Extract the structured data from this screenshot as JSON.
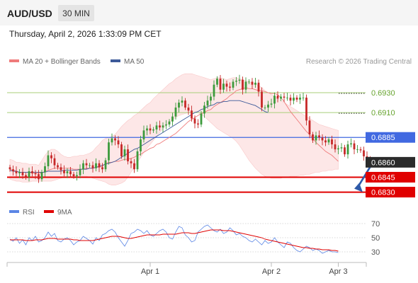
{
  "header": {
    "pair": "AUD/USD",
    "timeframe": "30 MIN",
    "datetime": "Thursday, April 2, 2026 1:33:09 PM CET",
    "credit": "Research © 2026 Trading Central"
  },
  "colors": {
    "candle_up": "#3c9a3c",
    "candle_down": "#c62828",
    "ma20": "#ef7b7b",
    "band_fill": "#fde3e3",
    "ma50": "#3d5a99",
    "resistance": "#a8cf7a",
    "resistance_text": "#66a32e",
    "pivot": "#4169e1",
    "support": "#e00000",
    "current": "#2b2b2b",
    "rsi": "#5b86e5",
    "rsi_ma": "#e00000",
    "arrow": "#2e5aa8"
  },
  "chart_data": [
    {
      "type": "candlestick",
      "legend": [
        "MA 20 + Bollinger Bands",
        "MA 50"
      ],
      "x_tick_labels": [
        "Apr 1",
        "Apr 2",
        "Apr 3"
      ],
      "ylim": [
        0.6824,
        0.6952
      ],
      "levels": [
        {
          "label": "0.6930",
          "value": 0.693,
          "kind": "resistance"
        },
        {
          "label": "0.6910",
          "value": 0.691,
          "kind": "resistance"
        },
        {
          "label": "0.6885",
          "value": 0.6885,
          "kind": "pivot"
        },
        {
          "label": "0.6860",
          "value": 0.686,
          "kind": "current"
        },
        {
          "label": "0.6845",
          "value": 0.6845,
          "kind": "support"
        },
        {
          "label": "0.6830",
          "value": 0.683,
          "kind": "support"
        }
      ],
      "close": [
        0.6853,
        0.6851,
        0.6849,
        0.685,
        0.6847,
        0.6845,
        0.6851,
        0.6849,
        0.6848,
        0.6843,
        0.685,
        0.6856,
        0.6867,
        0.6864,
        0.6857,
        0.6855,
        0.6852,
        0.6849,
        0.6851,
        0.6848,
        0.6846,
        0.6847,
        0.6853,
        0.6859,
        0.6857,
        0.6857,
        0.6854,
        0.6859,
        0.6855,
        0.6853,
        0.6862,
        0.688,
        0.6884,
        0.6882,
        0.6878,
        0.6866,
        0.6873,
        0.6861,
        0.6859,
        0.6853,
        0.6871,
        0.6883,
        0.6892,
        0.6894,
        0.6892,
        0.6893,
        0.6897,
        0.6895,
        0.6897,
        0.6898,
        0.6901,
        0.6906,
        0.6915,
        0.692,
        0.6922,
        0.6915,
        0.6912,
        0.6904,
        0.6899,
        0.6898,
        0.6909,
        0.6917,
        0.6922,
        0.6926,
        0.6938,
        0.6944,
        0.6933,
        0.6939,
        0.6936,
        0.6935,
        0.6941,
        0.6942,
        0.6943,
        0.6933,
        0.6941,
        0.6941,
        0.6938,
        0.694,
        0.6931,
        0.6915,
        0.6915,
        0.6918,
        0.6919,
        0.6927,
        0.6924,
        0.6926,
        0.6925,
        0.6925,
        0.6922,
        0.6925,
        0.6923,
        0.6925,
        0.6925,
        0.6902,
        0.6888,
        0.6882,
        0.6887,
        0.6885,
        0.6882,
        0.688,
        0.6883,
        0.6878,
        0.6873,
        0.6874,
        0.6875,
        0.6868,
        0.6878,
        0.6879,
        0.6873,
        0.6873,
        0.6872,
        0.6866,
        0.6863,
        0.6861
      ],
      "ma20": [
        0.6853,
        0.6852,
        0.6851,
        0.685,
        0.685,
        0.685,
        0.685,
        0.6849,
        0.6849,
        0.6849,
        0.6849,
        0.6851,
        0.6852,
        0.6853,
        0.6854,
        0.6854,
        0.6854,
        0.6854,
        0.6854,
        0.6854,
        0.6853,
        0.6853,
        0.6853,
        0.6853,
        0.6854,
        0.6854,
        0.6854,
        0.6855,
        0.6855,
        0.6856,
        0.6859,
        0.686,
        0.686,
        0.6861,
        0.6861,
        0.6862,
        0.6863,
        0.6863,
        0.6864,
        0.6865,
        0.6867,
        0.6868,
        0.687,
        0.6872,
        0.6874,
        0.6875,
        0.6878,
        0.6879,
        0.6881,
        0.6883,
        0.6885,
        0.6887,
        0.6889,
        0.6892,
        0.6895,
        0.6898,
        0.6901,
        0.6903,
        0.6905,
        0.6907,
        0.6909,
        0.691,
        0.6912,
        0.6913,
        0.6916,
        0.6918,
        0.692,
        0.6922,
        0.6924,
        0.6927,
        0.6929,
        0.6932,
        0.6933,
        0.6934,
        0.6935,
        0.6934,
        0.6934,
        0.6933,
        0.6932,
        0.6932,
        0.6931,
        0.693,
        0.6929,
        0.6929,
        0.6928,
        0.6925,
        0.6921,
        0.6916,
        0.6911,
        0.6907,
        0.6903,
        0.6899,
        0.6895,
        0.6891,
        0.6888,
        0.6884,
        0.688,
        0.6877,
        0.6874,
        0.6871,
        0.6869,
        0.6867,
        0.6864,
        0.6861
      ],
      "bb_upper": [
        0.6863,
        0.6862,
        0.686,
        0.686,
        0.6859,
        0.6859,
        0.6858,
        0.6858,
        0.6858,
        0.6857,
        0.6862,
        0.6867,
        0.6871,
        0.6873,
        0.6873,
        0.6871,
        0.6868,
        0.6866,
        0.6865,
        0.6865,
        0.6866,
        0.6866,
        0.6867,
        0.6867,
        0.6868,
        0.6869,
        0.6871,
        0.6875,
        0.6878,
        0.6882,
        0.6884,
        0.6885,
        0.6886,
        0.6888,
        0.6892,
        0.6896,
        0.6899,
        0.6902,
        0.6904,
        0.6907,
        0.6909,
        0.6912,
        0.6915,
        0.6918,
        0.692,
        0.6924,
        0.6927,
        0.693,
        0.6933,
        0.6936,
        0.6939,
        0.6941,
        0.6944,
        0.6946,
        0.6948,
        0.6949,
        0.6949,
        0.6949,
        0.6948,
        0.6947,
        0.6946,
        0.6945,
        0.6944,
        0.6943,
        0.6944,
        0.6945,
        0.6945,
        0.6944,
        0.6943,
        0.6944,
        0.6945,
        0.6945,
        0.6944,
        0.6943,
        0.6942,
        0.6941,
        0.694,
        0.6939,
        0.6937,
        0.6935,
        0.6932,
        0.693,
        0.6928,
        0.6926,
        0.6924,
        0.6922,
        0.692,
        0.6918,
        0.6916,
        0.6914,
        0.6912,
        0.691,
        0.6908,
        0.6906,
        0.6904,
        0.6902,
        0.69,
        0.6898,
        0.6897,
        0.6896,
        0.6895,
        0.6894,
        0.6893,
        0.6892
      ],
      "bb_lower": [
        0.6843,
        0.6842,
        0.6841,
        0.6841,
        0.684,
        0.684,
        0.684,
        0.6841,
        0.6841,
        0.6841,
        0.6841,
        0.6841,
        0.6841,
        0.6841,
        0.6842,
        0.6843,
        0.6844,
        0.6845,
        0.6846,
        0.6846,
        0.6846,
        0.6846,
        0.6846,
        0.6846,
        0.6846,
        0.6845,
        0.6844,
        0.6843,
        0.6842,
        0.6841,
        0.684,
        0.6838,
        0.6837,
        0.6837,
        0.6838,
        0.6839,
        0.6841,
        0.6845,
        0.685,
        0.6855,
        0.686,
        0.6865,
        0.687,
        0.6874,
        0.6878,
        0.6882,
        0.6886,
        0.689,
        0.6894,
        0.6897,
        0.69,
        0.6903,
        0.6905,
        0.6907,
        0.6908,
        0.6909,
        0.691,
        0.6911,
        0.6911,
        0.691,
        0.6908,
        0.6906,
        0.6903,
        0.69,
        0.6897,
        0.6894,
        0.6892,
        0.689,
        0.6888,
        0.6886,
        0.6884,
        0.6881,
        0.6877,
        0.6872,
        0.6867,
        0.6862,
        0.6858,
        0.6854,
        0.6851,
        0.6848,
        0.6846,
        0.6845,
        0.6844,
        0.6844,
        0.6844,
        0.6844,
        0.6845,
        0.6845,
        0.6846,
        0.6846,
        0.6846,
        0.6847,
        0.6847,
        0.6848,
        0.6848,
        0.6849,
        0.685,
        0.685,
        0.6851,
        0.6851,
        0.6852,
        0.6852,
        0.6853,
        0.6853
      ],
      "ma50": [
        0.6852,
        0.6851,
        0.6851,
        0.685,
        0.685,
        0.685,
        0.685,
        0.685,
        0.685,
        0.685,
        0.685,
        0.685,
        0.6851,
        0.6851,
        0.6851,
        0.6851,
        0.6851,
        0.6852,
        0.6852,
        0.6852,
        0.6852,
        0.6852,
        0.6853,
        0.6853,
        0.6853,
        0.6854,
        0.6854,
        0.6855,
        0.6856,
        0.6857,
        0.6858,
        0.6859,
        0.686,
        0.6861,
        0.6863,
        0.6865,
        0.6867,
        0.6869,
        0.6871,
        0.6873,
        0.6874,
        0.6876,
        0.6878,
        0.688,
        0.6882,
        0.6884,
        0.6886,
        0.6888,
        0.689,
        0.6892,
        0.6894,
        0.6896,
        0.6898,
        0.69,
        0.6902,
        0.6904,
        0.6906,
        0.6908,
        0.691,
        0.6911,
        0.6913,
        0.6914,
        0.6916,
        0.6917,
        0.6918,
        0.692,
        0.692,
        0.6921,
        0.6921,
        0.6922,
        0.6922,
        0.6922,
        0.6922,
        0.6921,
        0.692,
        0.6919,
        0.6918,
        0.6917,
        0.6915,
        0.6913,
        0.6911,
        0.691
      ]
    },
    {
      "type": "line",
      "legend": [
        "RSI",
        "9MA"
      ],
      "y_tick_labels": [
        "70",
        "50",
        "30"
      ],
      "ylim": [
        20,
        80
      ],
      "rsi": [
        48,
        45,
        50,
        42,
        47,
        40,
        50,
        46,
        52,
        44,
        46,
        50,
        58,
        52,
        56,
        46,
        44,
        48,
        50,
        46,
        40,
        44,
        46,
        52,
        49,
        46,
        41,
        50,
        46,
        54,
        56,
        60,
        62,
        58,
        50,
        44,
        38,
        46,
        56,
        58,
        62,
        60,
        56,
        60,
        54,
        52,
        56,
        60,
        62,
        58,
        50,
        48,
        58,
        66,
        64,
        54,
        50,
        44,
        46,
        58,
        62,
        66,
        68,
        64,
        60,
        58,
        62,
        56,
        58,
        64,
        60,
        54,
        56,
        52,
        50,
        46,
        44,
        48,
        44,
        40,
        46,
        42,
        44,
        50,
        44,
        40,
        36,
        44,
        42,
        36,
        32,
        30,
        34,
        38,
        36,
        32,
        34,
        32,
        28,
        30,
        32,
        30,
        30,
        29
      ],
      "rsi_ma": [
        47,
        47,
        47,
        47,
        47,
        46,
        46,
        46,
        47,
        47,
        47,
        48,
        49,
        49,
        49,
        48,
        48,
        48,
        48,
        48,
        47,
        47,
        46,
        46,
        46,
        46,
        46,
        47,
        48,
        49,
        50,
        51,
        52,
        52,
        52,
        51,
        50,
        49,
        49,
        50,
        51,
        52,
        53,
        54,
        54,
        54,
        54,
        54,
        55,
        55,
        55,
        55,
        55,
        56,
        57,
        57,
        57,
        56,
        56,
        57,
        58,
        59,
        60,
        61,
        61,
        61,
        61,
        60,
        60,
        60,
        59,
        58,
        57,
        56,
        55,
        54,
        53,
        52,
        51,
        50,
        48,
        47,
        46,
        45,
        44,
        43,
        42,
        41,
        40,
        39,
        38,
        37,
        36,
        36,
        35,
        35,
        34,
        34,
        33,
        33,
        33,
        32,
        32,
        31
      ]
    }
  ]
}
